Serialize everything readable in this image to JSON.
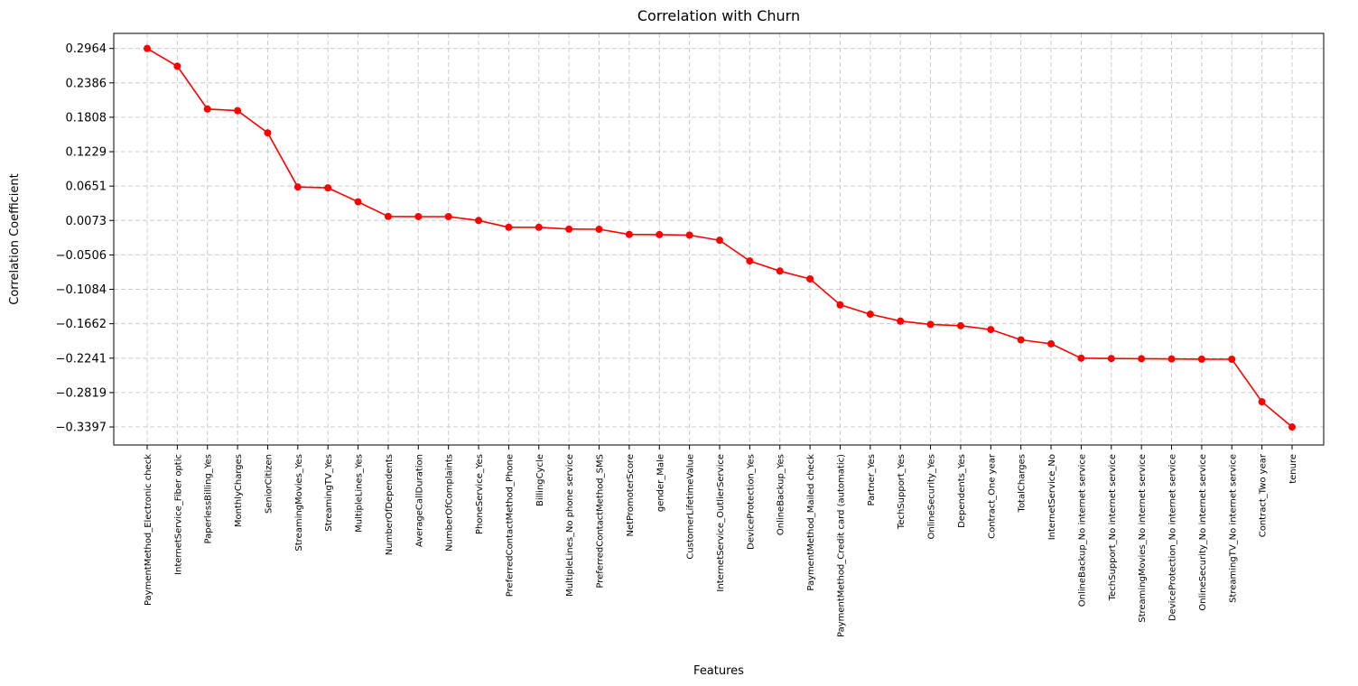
{
  "chart_data": {
    "type": "line",
    "title": "Correlation with Churn",
    "xlabel": "Features",
    "ylabel": "Correlation Coefficient",
    "ylim": [
      -0.37,
      0.3217
    ],
    "yticks": [
      0.2964,
      0.2386,
      0.1808,
      0.1229,
      0.0651,
      0.0073,
      -0.0506,
      -0.1084,
      -0.1662,
      -0.2241,
      -0.2819,
      -0.3397
    ],
    "ytick_labels": [
      "0.2964",
      "0.2386",
      "0.1808",
      "0.1229",
      "0.0651",
      "0.0073",
      "−0.0506",
      "−0.1084",
      "−0.1662",
      "−0.2241",
      "−0.2819",
      "−0.3397"
    ],
    "grid": true,
    "line_color": "#ff0000",
    "grid_color": "#cccccc",
    "categories": [
      "PaymentMethod_Electronic check",
      "InternetService_Fiber optic",
      "PaperlessBilling_Yes",
      "MonthlyCharges",
      "SeniorCitizen",
      "StreamingMovies_Yes",
      "StreamingTV_Yes",
      "MultipleLines_Yes",
      "NumberOfDependents",
      "AverageCallDuration",
      "NumberOfComplaints",
      "PhoneService_Yes",
      "PreferredContactMethod_Phone",
      "BillingCycle",
      "MultipleLines_No phone service",
      "PreferredContactMethod_SMS",
      "NetPromoterScore",
      "gender_Male",
      "CustomerLifetimeValue",
      "InternetService_OutlierService",
      "DeviceProtection_Yes",
      "OnlineBackup_Yes",
      "PaymentMethod_Mailed check",
      "PaymentMethod_Credit card (automatic)",
      "Partner_Yes",
      "TechSupport_Yes",
      "OnlineSecurity_Yes",
      "Dependents_Yes",
      "Contract_One year",
      "TotalCharges",
      "InternetService_No",
      "OnlineBackup_No internet service",
      "TechSupport_No internet service",
      "StreamingMovies_No internet service",
      "DeviceProtection_No internet service",
      "OnlineSecurity_No internet service",
      "StreamingTV_No internet service",
      "Contract_Two year",
      "tenure"
    ],
    "values": [
      0.2964,
      0.2665,
      0.1946,
      0.1918,
      0.1545,
      0.0636,
      0.0621,
      0.0387,
      0.0141,
      0.0138,
      0.0138,
      0.0073,
      -0.0041,
      -0.0041,
      -0.0072,
      -0.0075,
      -0.0161,
      -0.0164,
      -0.0173,
      -0.0259,
      -0.0607,
      -0.0777,
      -0.0909,
      -0.1345,
      -0.1502,
      -0.1618,
      -0.1673,
      -0.1695,
      -0.176,
      -0.1933,
      -0.2,
      -0.2241,
      -0.2247,
      -0.225,
      -0.2254,
      -0.2257,
      -0.2259,
      -0.2974,
      -0.3397
    ]
  }
}
